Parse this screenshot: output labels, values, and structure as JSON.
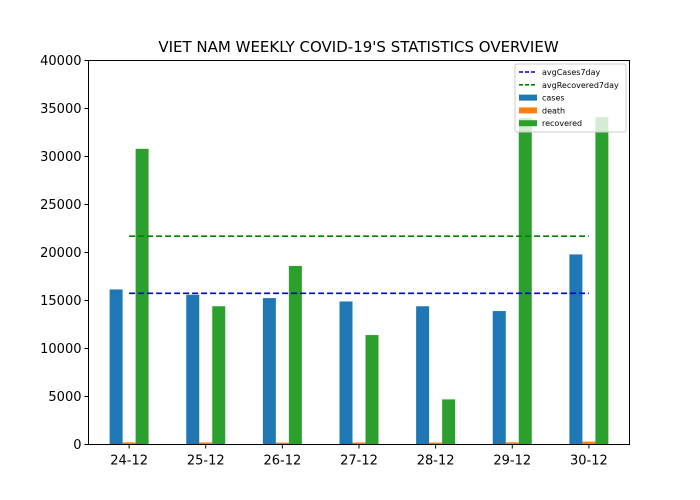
{
  "chart_data": {
    "type": "bar",
    "title": "VIET NAM WEEKLY COVID-19'S STATISTICS OVERVIEW",
    "xlabel": "",
    "ylabel": "",
    "categories": [
      "24-12",
      "25-12",
      "26-12",
      "27-12",
      "28-12",
      "29-12",
      "30-12"
    ],
    "ylim": [
      0,
      40000
    ],
    "yticks": [
      0,
      5000,
      10000,
      15000,
      20000,
      25000,
      30000,
      35000,
      40000
    ],
    "grid": false,
    "legend_position": "top-right",
    "series": [
      {
        "name": "cases",
        "color": "#1f77b4",
        "values": [
          16150,
          15600,
          15250,
          14900,
          14400,
          13900,
          19800
        ]
      },
      {
        "name": "death",
        "color": "#ff7f0e",
        "values": [
          220,
          210,
          200,
          210,
          200,
          230,
          300
        ]
      },
      {
        "name": "recovered",
        "color": "#2ca02c",
        "values": [
          30800,
          14400,
          18600,
          11400,
          4700,
          34000,
          34100
        ]
      }
    ],
    "reference_lines": [
      {
        "name": "avgCases7day",
        "color": "#0000cc",
        "style": "dashed",
        "value": 15750
      },
      {
        "name": "avgRecovered7day",
        "color": "#008000",
        "style": "dashed",
        "value": 21700
      }
    ]
  }
}
